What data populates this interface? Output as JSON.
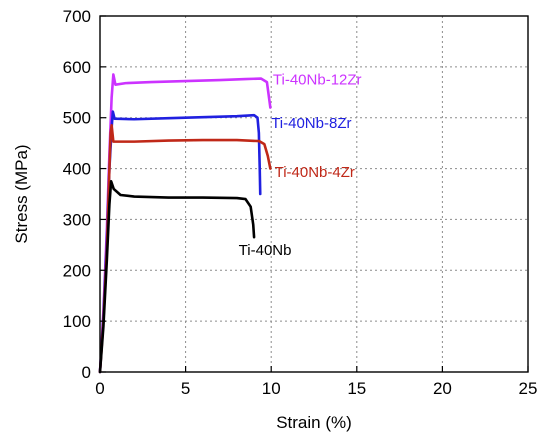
{
  "chart_data": {
    "type": "line",
    "title": "",
    "xlabel": "Strain (%)",
    "ylabel": "Stress (MPa)",
    "xlim": [
      0,
      25
    ],
    "ylim": [
      0,
      700
    ],
    "xticks": [
      0,
      5,
      10,
      15,
      20,
      25
    ],
    "yticks": [
      0,
      100,
      200,
      300,
      400,
      500,
      600,
      700
    ],
    "grid": true,
    "legend": "none",
    "series": [
      {
        "name": "Ti-40Nb-12Zr",
        "color": "#cc33ff",
        "points": [
          [
            0.0,
            0
          ],
          [
            0.2,
            120
          ],
          [
            0.4,
            280
          ],
          [
            0.55,
            430
          ],
          [
            0.68,
            540
          ],
          [
            0.78,
            585
          ],
          [
            0.9,
            565
          ],
          [
            1.5,
            568
          ],
          [
            3.0,
            570
          ],
          [
            5.0,
            572
          ],
          [
            7.0,
            574
          ],
          [
            8.5,
            576
          ],
          [
            9.4,
            577
          ],
          [
            9.75,
            570
          ],
          [
            9.85,
            545
          ],
          [
            9.95,
            520
          ]
        ]
      },
      {
        "name": "Ti-40Nb-8Zr",
        "color": "#2020e0",
        "points": [
          [
            0.0,
            0
          ],
          [
            0.2,
            110
          ],
          [
            0.4,
            260
          ],
          [
            0.55,
            400
          ],
          [
            0.68,
            480
          ],
          [
            0.75,
            512
          ],
          [
            0.85,
            498
          ],
          [
            2.0,
            497
          ],
          [
            4.0,
            499
          ],
          [
            6.0,
            501
          ],
          [
            8.0,
            503
          ],
          [
            9.0,
            505
          ],
          [
            9.2,
            500
          ],
          [
            9.28,
            470
          ],
          [
            9.33,
            400
          ],
          [
            9.36,
            350
          ]
        ]
      },
      {
        "name": "Ti-40Nb-4Zr",
        "color": "#c02818",
        "points": [
          [
            0.0,
            0
          ],
          [
            0.2,
            100
          ],
          [
            0.4,
            240
          ],
          [
            0.53,
            380
          ],
          [
            0.62,
            470
          ],
          [
            0.68,
            485
          ],
          [
            0.78,
            453
          ],
          [
            2.0,
            453
          ],
          [
            4.0,
            455
          ],
          [
            6.0,
            456
          ],
          [
            8.0,
            456
          ],
          [
            9.3,
            454
          ],
          [
            9.6,
            448
          ],
          [
            9.8,
            425
          ],
          [
            9.95,
            400
          ]
        ]
      },
      {
        "name": "Ti-40Nb",
        "color": "#000000",
        "points": [
          [
            0.0,
            0
          ],
          [
            0.2,
            90
          ],
          [
            0.4,
            220
          ],
          [
            0.55,
            330
          ],
          [
            0.65,
            375
          ],
          [
            0.8,
            360
          ],
          [
            1.2,
            348
          ],
          [
            2.0,
            345
          ],
          [
            4.0,
            343
          ],
          [
            6.0,
            343
          ],
          [
            8.0,
            342
          ],
          [
            8.5,
            340
          ],
          [
            8.8,
            325
          ],
          [
            8.95,
            290
          ],
          [
            9.0,
            265
          ]
        ]
      }
    ]
  },
  "labels": [
    {
      "text": "Ti-40Nb-12Zr",
      "x": 10.1,
      "y": 575,
      "color": "#cc33ff"
    },
    {
      "text": "Ti-40Nb-8Zr",
      "x": 10.0,
      "y": 490,
      "color": "#2020e0"
    },
    {
      "text": "Ti-40Nb-4Zr",
      "x": 10.2,
      "y": 393,
      "color": "#c02818"
    },
    {
      "text": "Ti-40Nb",
      "x": 8.1,
      "y": 240,
      "color": "#000000"
    }
  ]
}
